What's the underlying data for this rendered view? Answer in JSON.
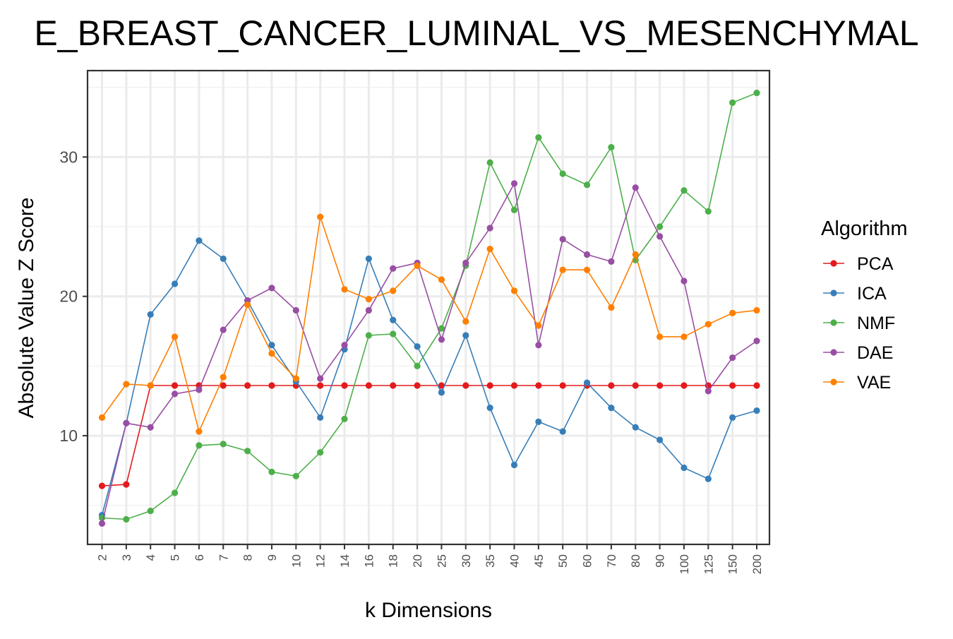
{
  "chart_data": {
    "type": "line",
    "title": "E_BREAST_CANCER_LUMINAL_VS_MESENCHYMAL",
    "xlabel": "k Dimensions",
    "ylabel": "Absolute Value Z Score",
    "categories": [
      "2",
      "3",
      "4",
      "5",
      "6",
      "7",
      "8",
      "9",
      "10",
      "12",
      "14",
      "16",
      "18",
      "20",
      "25",
      "30",
      "35",
      "40",
      "45",
      "50",
      "60",
      "70",
      "80",
      "90",
      "100",
      "125",
      "150",
      "200"
    ],
    "yticks": [
      10,
      20,
      30
    ],
    "ylim": [
      2.2,
      36.2
    ],
    "grid": true,
    "legend": {
      "title": "Algorithm",
      "position": "right"
    },
    "series": [
      {
        "name": "PCA",
        "color": "#E41A1C",
        "values": [
          6.4,
          6.5,
          13.6,
          13.6,
          13.6,
          13.6,
          13.6,
          13.6,
          13.6,
          13.6,
          13.6,
          13.6,
          13.6,
          13.6,
          13.6,
          13.6,
          13.6,
          13.6,
          13.6,
          13.6,
          13.6,
          13.6,
          13.6,
          13.6,
          13.6,
          13.6,
          13.6,
          13.6
        ]
      },
      {
        "name": "ICA",
        "color": "#377EB8",
        "values": [
          4.3,
          10.9,
          18.7,
          20.9,
          24.0,
          22.7,
          19.7,
          16.5,
          13.9,
          11.3,
          16.2,
          22.7,
          18.3,
          16.4,
          13.1,
          17.2,
          12.0,
          7.9,
          11.0,
          10.3,
          13.8,
          12.0,
          10.6,
          9.7,
          7.7,
          6.9,
          11.3,
          11.8
        ]
      },
      {
        "name": "NMF",
        "color": "#4DAF4A",
        "values": [
          4.1,
          4.0,
          4.6,
          5.9,
          9.3,
          9.4,
          8.9,
          7.4,
          7.1,
          8.8,
          11.2,
          17.2,
          17.3,
          15.0,
          17.7,
          22.2,
          29.6,
          26.2,
          31.4,
          28.8,
          28.0,
          30.7,
          22.6,
          25.0,
          27.6,
          26.1,
          33.9,
          34.6
        ]
      },
      {
        "name": "DAE",
        "color": "#984EA3",
        "values": [
          3.7,
          10.9,
          10.6,
          13.0,
          13.3,
          17.6,
          19.7,
          20.6,
          19.0,
          14.1,
          16.5,
          19.0,
          22.0,
          22.4,
          16.9,
          22.4,
          24.9,
          28.1,
          16.5,
          24.1,
          23.0,
          22.5,
          27.8,
          24.3,
          21.1,
          13.2,
          15.6,
          16.8
        ]
      },
      {
        "name": "VAE",
        "color": "#FF7F00",
        "values": [
          11.3,
          13.7,
          13.6,
          17.1,
          10.3,
          14.2,
          19.4,
          15.9,
          14.1,
          25.7,
          20.5,
          19.8,
          20.4,
          22.2,
          21.2,
          18.2,
          23.4,
          20.4,
          17.9,
          21.9,
          21.9,
          19.2,
          23.0,
          17.1,
          17.1,
          18.0,
          18.8,
          19.0
        ]
      }
    ]
  }
}
